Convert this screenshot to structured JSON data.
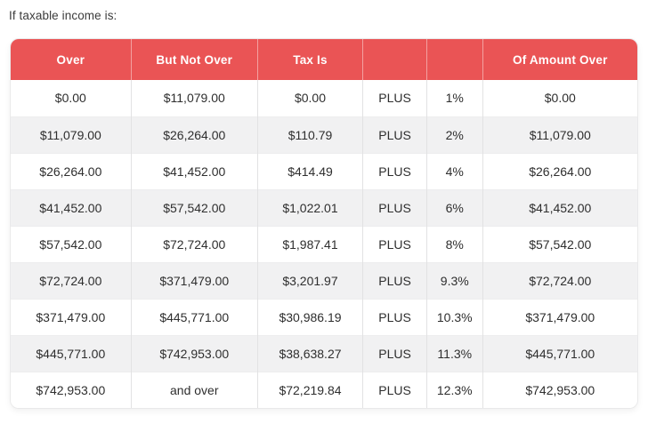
{
  "page": {
    "heading": "If taxable income is:"
  },
  "colors": {
    "header_bg": "#ea5455",
    "header_text": "#ffffff",
    "stripe_bg": "#f1f1f2",
    "cell_text": "#2e2e2e"
  },
  "table": {
    "columns": [
      "Over",
      "But Not Over",
      "Tax Is",
      "",
      "",
      "Of Amount Over"
    ],
    "rows": [
      [
        "$0.00",
        "$11,079.00",
        "$0.00",
        "PLUS",
        "1%",
        "$0.00"
      ],
      [
        "$11,079.00",
        "$26,264.00",
        "$110.79",
        "PLUS",
        "2%",
        "$11,079.00"
      ],
      [
        "$26,264.00",
        "$41,452.00",
        "$414.49",
        "PLUS",
        "4%",
        "$26,264.00"
      ],
      [
        "$41,452.00",
        "$57,542.00",
        "$1,022.01",
        "PLUS",
        "6%",
        "$41,452.00"
      ],
      [
        "$57,542.00",
        "$72,724.00",
        "$1,987.41",
        "PLUS",
        "8%",
        "$57,542.00"
      ],
      [
        "$72,724.00",
        "$371,479.00",
        "$3,201.97",
        "PLUS",
        "9.3%",
        "$72,724.00"
      ],
      [
        "$371,479.00",
        "$445,771.00",
        "$30,986.19",
        "PLUS",
        "10.3%",
        "$371,479.00"
      ],
      [
        "$445,771.00",
        "$742,953.00",
        "$38,638.27",
        "PLUS",
        "11.3%",
        "$445,771.00"
      ],
      [
        "$742,953.00",
        "and over",
        "$72,219.84",
        "PLUS",
        "12.3%",
        "$742,953.00"
      ]
    ]
  }
}
